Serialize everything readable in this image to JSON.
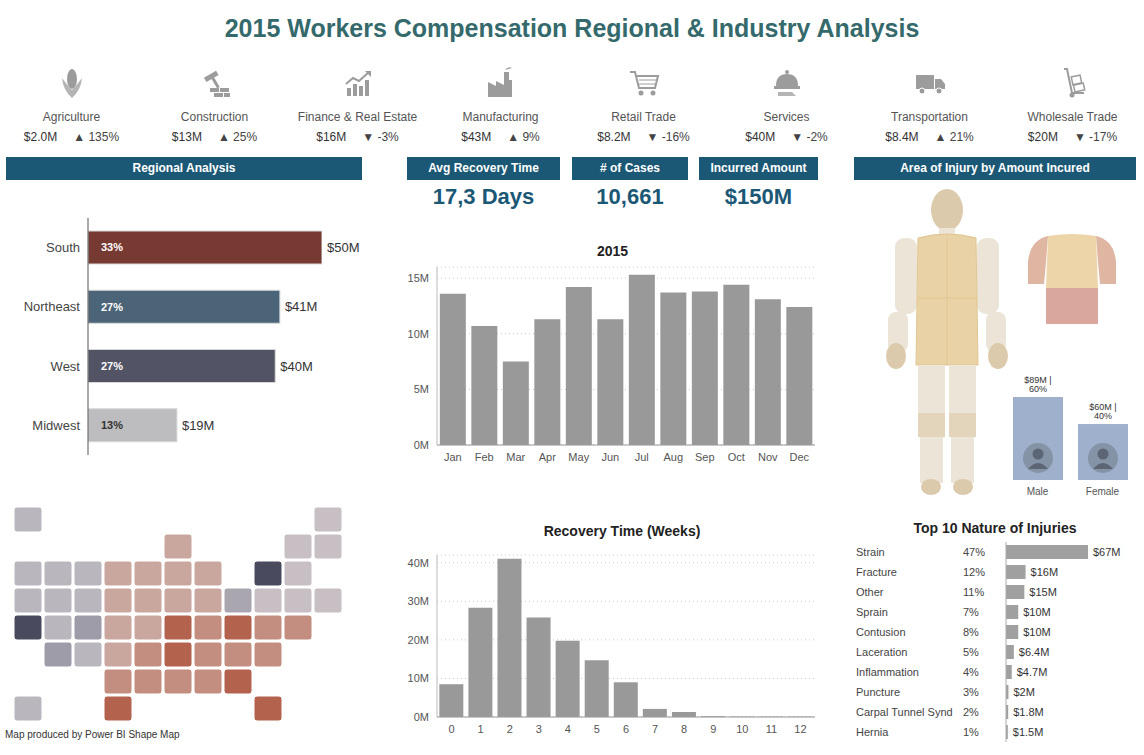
{
  "title": "2015 Workers Compensation Regional & Industry Analysis",
  "industries": [
    {
      "name": "Agriculture",
      "amount": "$2.0M",
      "change": "▲ 135%"
    },
    {
      "name": "Construction",
      "amount": "$13M",
      "change": "▲ 25%"
    },
    {
      "name": "Finance & Real Estate",
      "amount": "$16M",
      "change": "▼ -3%"
    },
    {
      "name": "Manufacturing",
      "amount": "$43M",
      "change": "▲ 9%"
    },
    {
      "name": "Retail Trade",
      "amount": "$8.2M",
      "change": "▼ -16%"
    },
    {
      "name": "Services",
      "amount": "$40M",
      "change": "▼ -2%"
    },
    {
      "name": "Transportation",
      "amount": "$8.4M",
      "change": "▲ 21%"
    },
    {
      "name": "Wholesale Trade",
      "amount": "$20M",
      "change": "▼ -17%"
    }
  ],
  "kpis": [
    {
      "label": "Avg Recovery Time",
      "value": "17,3 Days"
    },
    {
      "label": "# of Cases",
      "value": "10,661"
    },
    {
      "label": "Incurred Amount",
      "value": "$150M"
    }
  ],
  "injury_area": {
    "title": "Area of Injury by Amount Incured"
  },
  "map_note": "Map produced by Power BI Shape Map",
  "chart_data": [
    {
      "type": "bar",
      "title": "Regional Analysis",
      "orientation": "horizontal",
      "categories": [
        "South",
        "Northeast",
        "West",
        "Midwest"
      ],
      "values": [
        50,
        41,
        40,
        19
      ],
      "value_labels": [
        "$50M",
        "$41M",
        "$40M",
        "$19M"
      ],
      "share_labels": [
        "33%",
        "27%",
        "27%",
        "13%"
      ],
      "colors": [
        "#773a32",
        "#4b6477",
        "#535366",
        "#bdbdbf"
      ],
      "xlim": [
        0,
        50
      ],
      "data_labels": true,
      "tick_labels": "y"
    },
    {
      "type": "bar",
      "title": "2015",
      "categories": [
        "Jan",
        "Feb",
        "Mar",
        "Apr",
        "May",
        "Jun",
        "Jul",
        "Aug",
        "Sep",
        "Oct",
        "Nov",
        "Dec"
      ],
      "values": [
        13.6,
        10.7,
        7.5,
        11.3,
        14.2,
        11.3,
        15.3,
        13.7,
        13.8,
        14.4,
        13.1,
        12.4
      ],
      "color": "#999999",
      "ylim": [
        0,
        16
      ],
      "yticks": [
        {
          "value": 0,
          "label": "0M"
        },
        {
          "value": 5,
          "label": "5M"
        },
        {
          "value": 10,
          "label": "10M"
        },
        {
          "value": 15,
          "label": "15M"
        }
      ],
      "grid": true
    },
    {
      "type": "bar",
      "title": "Recovery Time (Weeks)",
      "categories": [
        "0",
        "1",
        "2",
        "3",
        "4",
        "5",
        "6",
        "7",
        "8",
        "9",
        "10",
        "11",
        "12"
      ],
      "values": [
        8.5,
        28.3,
        41,
        25.8,
        19.8,
        14.7,
        9,
        2.1,
        1.3,
        0.2,
        0.1,
        0.1,
        0.1
      ],
      "color": "#999999",
      "ylim": [
        0,
        42
      ],
      "yticks": [
        {
          "value": 0,
          "label": "0M"
        },
        {
          "value": 10,
          "label": "10M"
        },
        {
          "value": 20,
          "label": "20M"
        },
        {
          "value": 30,
          "label": "30M"
        },
        {
          "value": 40,
          "label": "40M"
        }
      ],
      "grid": true
    },
    {
      "type": "bar",
      "categories": [
        "Male",
        "Female"
      ],
      "values": [
        89,
        60
      ],
      "value_labels": [
        "$89M | 60%",
        "$60M | 40%"
      ],
      "color": "#9eb0cc",
      "ylim": [
        0,
        89
      ],
      "data_labels": true,
      "tick_labels": "x"
    },
    {
      "type": "bar",
      "title": "Top 10 Nature of Injuries",
      "orientation": "horizontal",
      "categories": [
        "Strain",
        "Fracture",
        "Other",
        "Sprain",
        "Contusion",
        "Laceration",
        "Inflammation",
        "Puncture",
        "Carpal Tunnel Synd",
        "Hernia"
      ],
      "values": [
        67,
        16,
        15,
        10,
        10,
        6.4,
        4.7,
        2,
        1.8,
        1.5
      ],
      "value_labels": [
        "$67M",
        "$16M",
        "$15M",
        "$10M",
        "$10M",
        "$6.4M",
        "$4.7M",
        "$2M",
        "$1.8M",
        "$1.5M"
      ],
      "share_labels": [
        "47%",
        "12%",
        "11%",
        "7%",
        "8%",
        "5%",
        "4%",
        "3%",
        "2%",
        "1%"
      ],
      "color": "#a0a0a0",
      "xlim": [
        0,
        67
      ],
      "data_labels": true,
      "tick_labels": "y"
    }
  ]
}
